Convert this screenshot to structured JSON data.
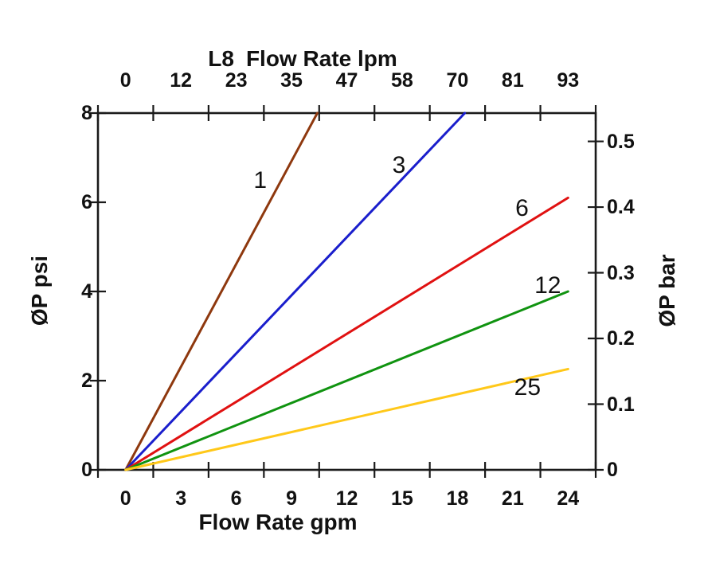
{
  "chart_data": {
    "type": "line",
    "top_axis": {
      "title_model": "L8",
      "title": "Flow Rate lpm",
      "tick_labels": [
        "0",
        "12",
        "23",
        "35",
        "47",
        "58",
        "70",
        "81",
        "93"
      ]
    },
    "bottom_axis": {
      "title": "Flow Rate gpm",
      "tick_labels": [
        "0",
        "3",
        "6",
        "9",
        "12",
        "15",
        "18",
        "21",
        "24"
      ],
      "min": 0,
      "max": 24
    },
    "left_axis": {
      "title": "ØP psi",
      "ticks": [
        0,
        2,
        4,
        6,
        8
      ],
      "min": 0,
      "max": 8
    },
    "right_axis": {
      "title": "ØP bar",
      "ticks": [
        0,
        0.1,
        0.2,
        0.3,
        0.4,
        0.5
      ],
      "psi_per_bar": 14.73
    },
    "axis_color": "#1a1a1a",
    "grid": "off",
    "legend": "inline-curve-labels",
    "series": [
      {
        "label": "1",
        "color": "#8E380E",
        "points": [
          [
            0,
            0
          ],
          [
            10.4,
            8
          ]
        ],
        "label_at": [
          7.3,
          6.48
        ]
      },
      {
        "label": "3",
        "color": "#1A1ECC",
        "points": [
          [
            0,
            0
          ],
          [
            18.4,
            8
          ]
        ],
        "label_at": [
          14.83,
          6.82
        ]
      },
      {
        "label": "6",
        "color": "#E01111",
        "points": [
          [
            0,
            0
          ],
          [
            24,
            6.1
          ]
        ],
        "label_at": [
          21.5,
          5.86
        ]
      },
      {
        "label": "12",
        "color": "#109310",
        "points": [
          [
            0,
            0
          ],
          [
            24,
            4.0
          ]
        ],
        "label_at": [
          22.9,
          4.13
        ]
      },
      {
        "label": "25",
        "color": "#FFC819",
        "points": [
          [
            0,
            0
          ],
          [
            24,
            2.26
          ]
        ],
        "label_at": [
          21.8,
          1.84
        ]
      }
    ]
  }
}
